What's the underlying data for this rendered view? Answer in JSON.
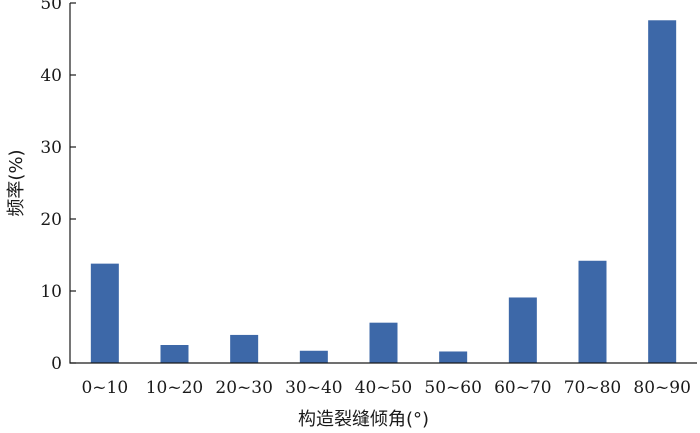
{
  "chart_data": {
    "type": "bar",
    "categories": [
      "0~10",
      "10~20",
      "20~30",
      "30~40",
      "40~50",
      "50~60",
      "60~70",
      "70~80",
      "80~90"
    ],
    "values": [
      13.8,
      2.5,
      3.9,
      1.7,
      5.6,
      1.6,
      9.1,
      14.2,
      47.6
    ],
    "xlabel": "构造裂缝倾角(°)",
    "ylabel": "频率(%)",
    "ylim": [
      0,
      50
    ],
    "yticks": [
      0,
      10,
      20,
      30,
      40,
      50
    ],
    "bar_color": "#3d68a8",
    "grid": false,
    "legend": "none"
  }
}
